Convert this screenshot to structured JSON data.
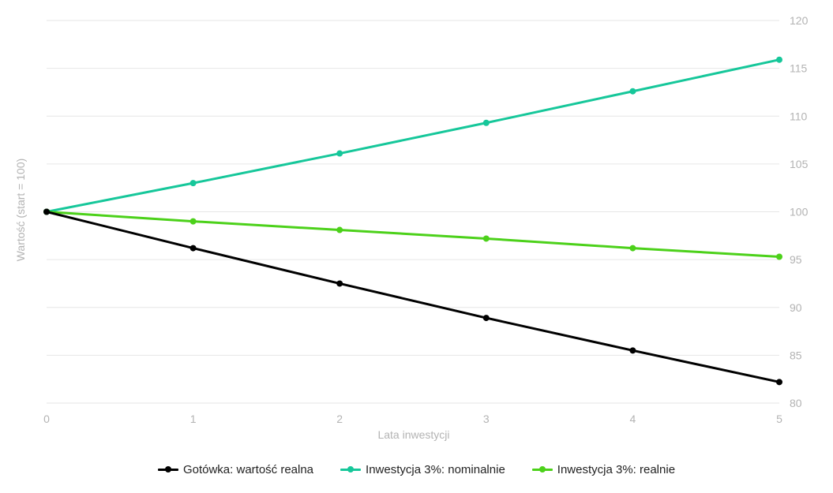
{
  "chart_data": {
    "type": "line",
    "x": [
      0,
      1,
      2,
      3,
      4,
      5
    ],
    "xlabel": "Lata inwestycji",
    "ylabel": "Wartość (start = 100)",
    "ylim": [
      80,
      120
    ],
    "xlim": [
      0,
      5
    ],
    "yticks": [
      80,
      85,
      90,
      95,
      100,
      105,
      110,
      115,
      120
    ],
    "xticks": [
      0,
      1,
      2,
      3,
      4,
      5
    ],
    "y_axis_side": "right",
    "grid": true,
    "legend_position": "bottom",
    "series": [
      {
        "name": "Gotówka: wartość realna",
        "color": "#000000",
        "values": [
          100,
          96.2,
          92.5,
          88.9,
          85.5,
          82.2
        ]
      },
      {
        "name": "Inwestycja 3%: nominalnie",
        "color": "#16c79a",
        "values": [
          100,
          103,
          106.1,
          109.3,
          112.6,
          115.9
        ]
      },
      {
        "name": "Inwestycja 3%: realnie",
        "color": "#4cd11a",
        "values": [
          100,
          99,
          98.1,
          97.2,
          96.2,
          95.3
        ]
      }
    ]
  }
}
